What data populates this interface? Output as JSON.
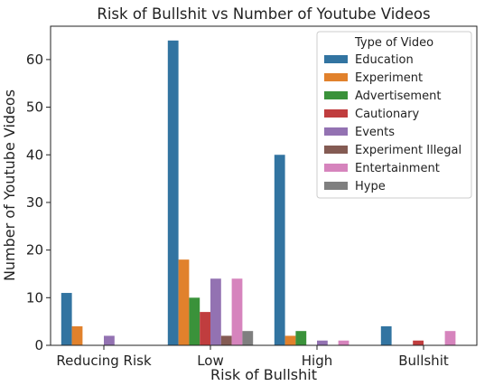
{
  "chart_data": {
    "type": "bar",
    "title": "Risk of Bullshit vs Number of Youtube Videos",
    "xlabel": "Risk of Bullshit",
    "ylabel": "Number of Youtube Videos",
    "categories": [
      "Reducing Risk",
      "Low",
      "High",
      "Bullshit"
    ],
    "ylim": [
      0,
      67
    ],
    "yticks": [
      0,
      10,
      20,
      30,
      40,
      50,
      60
    ],
    "grid": false,
    "legend": {
      "title": "Type of Video",
      "position": "top-right"
    },
    "series": [
      {
        "name": "Education",
        "color": "#3274a1",
        "values": [
          11,
          64,
          40,
          4
        ]
      },
      {
        "name": "Experiment",
        "color": "#e1812c",
        "values": [
          4,
          18,
          2,
          0
        ]
      },
      {
        "name": "Advertisement",
        "color": "#3a923a",
        "values": [
          0,
          10,
          3,
          0
        ]
      },
      {
        "name": "Cautionary",
        "color": "#c03d3e",
        "values": [
          0,
          7,
          0,
          1
        ]
      },
      {
        "name": "Events",
        "color": "#9372b2",
        "values": [
          2,
          14,
          1,
          0
        ]
      },
      {
        "name": "Experiment Illegal",
        "color": "#845b53",
        "values": [
          0,
          2,
          0,
          0
        ]
      },
      {
        "name": "Entertainment",
        "color": "#d684bd",
        "values": [
          0,
          14,
          1,
          3
        ]
      },
      {
        "name": "Hype",
        "color": "#7f7f7f",
        "values": [
          0,
          3,
          0,
          0
        ]
      }
    ]
  }
}
